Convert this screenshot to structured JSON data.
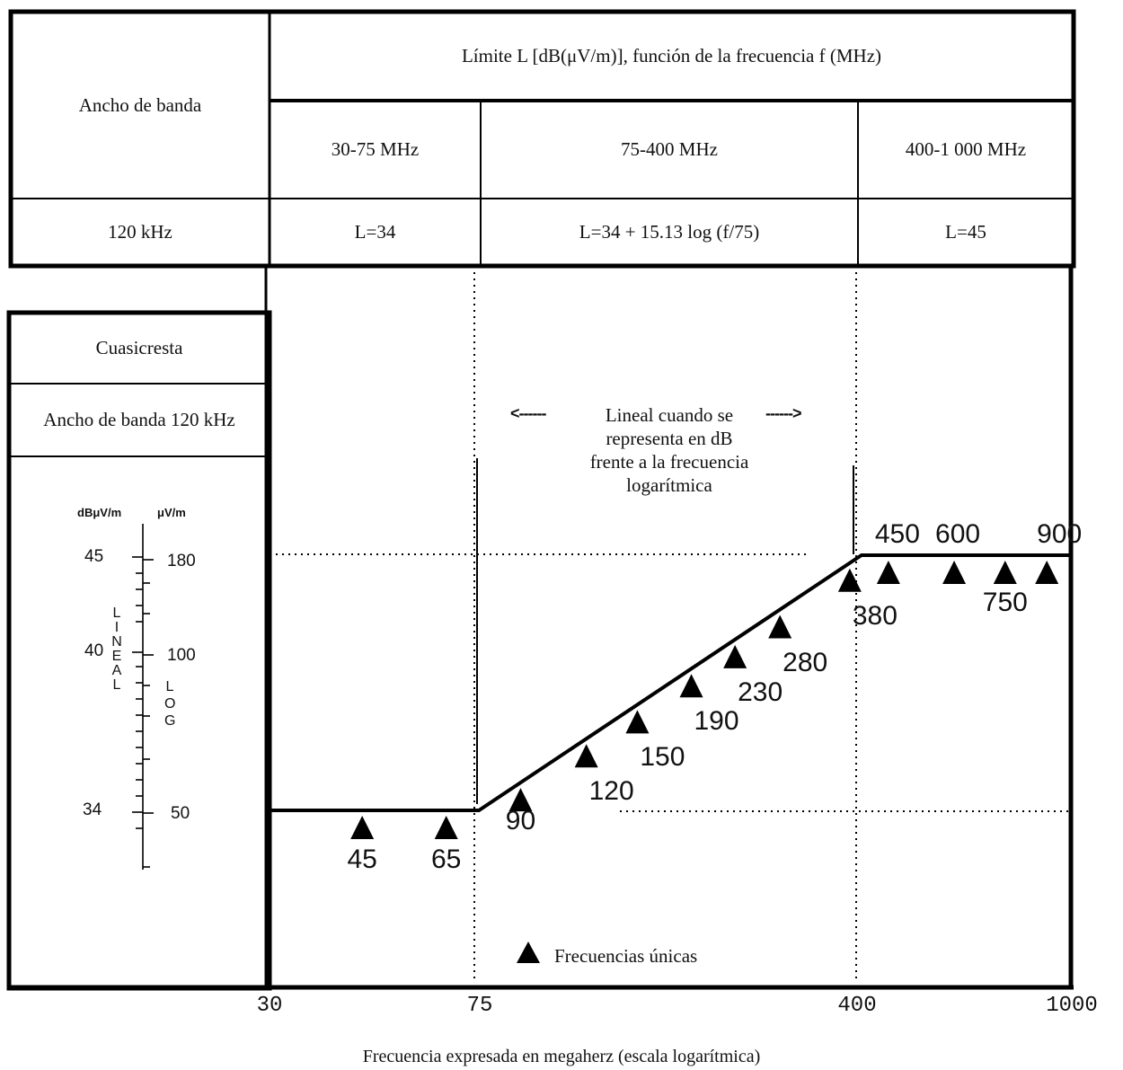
{
  "table": {
    "bandwidth_header": "Ancho de banda",
    "limit_header": "Límite L [dB(μV/m)], función de la frecuencia f (MHz)",
    "ranges": [
      "30-75 MHz",
      "75-400 MHz",
      "400-1 000 MHz"
    ],
    "bandwidth_value": "120 kHz",
    "formulas": [
      "L=34",
      "L=34 + 15.13 log (f/75)",
      "L=45"
    ]
  },
  "side_table": {
    "detector": "Cuasicresta",
    "bandwidth": "Ancho de banda 120 kHz"
  },
  "scale": {
    "left_unit": "dBμV/m",
    "right_unit": "μV/m",
    "left_values": [
      "45",
      "40",
      "34"
    ],
    "right_values": [
      "180",
      "100",
      "50"
    ],
    "linear_label": "LINEAL",
    "log_label": "LOG"
  },
  "annotation": {
    "line1": "Lineal cuando se",
    "line2": "representa en dB",
    "line3": "frente a la frecuencia",
    "line4": "logarítmica",
    "arrow_left": "<------",
    "arrow_right": "------>"
  },
  "legend": {
    "label": "Frecuencias únicas",
    "icon": "triangle-up-icon"
  },
  "chart_data": {
    "type": "line",
    "x_scale": "log",
    "xlim": [
      30,
      1000
    ],
    "ylim": [
      30,
      47
    ],
    "x_ticks": [
      "30",
      "75",
      "400",
      "1000"
    ],
    "xlabel": "Frecuencia expresada en megaherz (escala logarítmica)",
    "series": [
      {
        "x": [
          30,
          75,
          400,
          1000
        ],
        "y": [
          34,
          34,
          45,
          45
        ]
      }
    ],
    "single_frequencies": [
      "45",
      "65",
      "90",
      "120",
      "150",
      "190",
      "230",
      "280",
      "380",
      "450",
      "600",
      "750",
      "900"
    ]
  }
}
